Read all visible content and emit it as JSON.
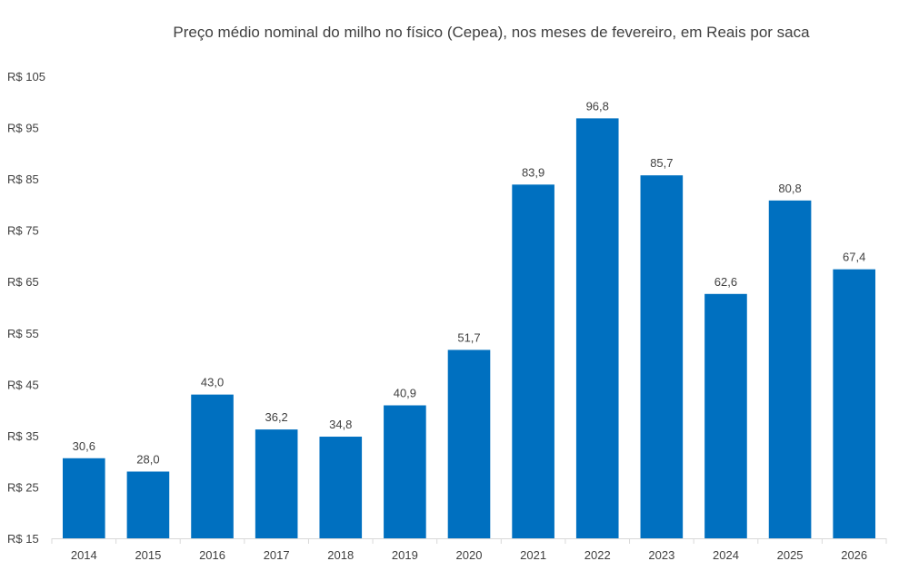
{
  "chart_data": {
    "type": "bar",
    "title": "Preço médio nominal do milho no físico (Cepea), nos meses de fevereiro, em Reais por saca",
    "xlabel": "",
    "ylabel": "",
    "categories": [
      "2014",
      "2015",
      "2016",
      "2017",
      "2018",
      "2019",
      "2020",
      "2021",
      "2022",
      "2023",
      "2024",
      "2025",
      "2026"
    ],
    "values": [
      30.6,
      28.0,
      43.0,
      36.2,
      34.8,
      40.9,
      51.7,
      83.9,
      96.8,
      85.7,
      62.6,
      80.8,
      67.4
    ],
    "value_labels": [
      "30,6",
      "28,0",
      "43,0",
      "36,2",
      "34,8",
      "40,9",
      "51,7",
      "83,9",
      "96,8",
      "85,7",
      "62,6",
      "80,8",
      "67,4"
    ],
    "ylim": [
      15,
      105
    ],
    "yticks": [
      15,
      25,
      35,
      45,
      55,
      65,
      75,
      85,
      95,
      105
    ],
    "ytick_labels": [
      "R$ 15",
      "R$ 25",
      "R$ 35",
      "R$ 45",
      "R$ 55",
      "R$ 65",
      "R$ 75",
      "R$ 85",
      "R$ 95",
      "R$ 105"
    ],
    "bar_color": "#0070C0",
    "grid": false
  }
}
